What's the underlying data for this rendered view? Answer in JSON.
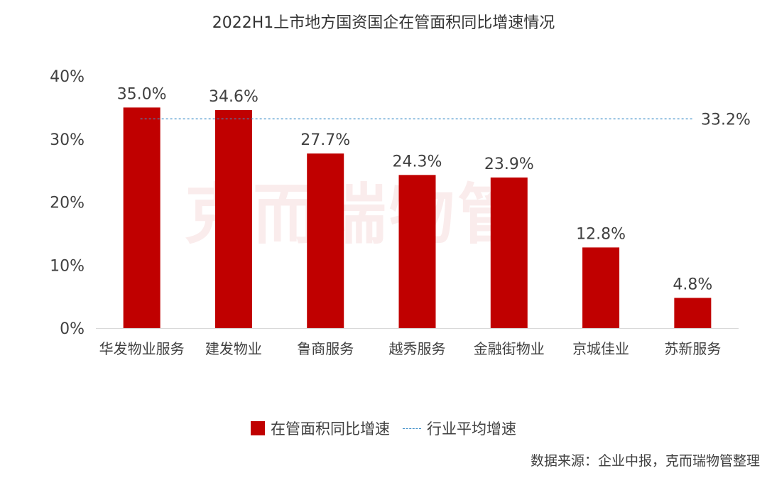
{
  "chart_data": {
    "type": "bar",
    "title": "2022H1上市地方国资国企在管面积同比增速情况",
    "categories": [
      "华发物业服务",
      "建发物业",
      "鲁商服务",
      "越秀服务",
      "金融街物业",
      "京城佳业",
      "苏新服务"
    ],
    "series": [
      {
        "name": "在管面积同比增速",
        "values": [
          35.0,
          34.6,
          27.7,
          24.3,
          23.9,
          12.8,
          4.8
        ],
        "color": "#c00000"
      }
    ],
    "data_labels": [
      "35.0%",
      "34.6%",
      "27.7%",
      "24.3%",
      "23.9%",
      "12.8%",
      "4.8%"
    ],
    "reference_line": {
      "name": "行业平均增速",
      "value": 33.2,
      "label": "33.2%",
      "style": "dashed",
      "color": "#3d8ec9"
    },
    "yticks": [
      "0%",
      "10%",
      "20%",
      "30%",
      "40%"
    ],
    "ytick_values": [
      0,
      10,
      20,
      30,
      40
    ],
    "ylim": [
      0,
      40
    ],
    "grid": false,
    "legend": "bottom-center"
  },
  "watermark": "克而瑞物管",
  "source": "数据来源：企业中报，克而瑞物管整理"
}
